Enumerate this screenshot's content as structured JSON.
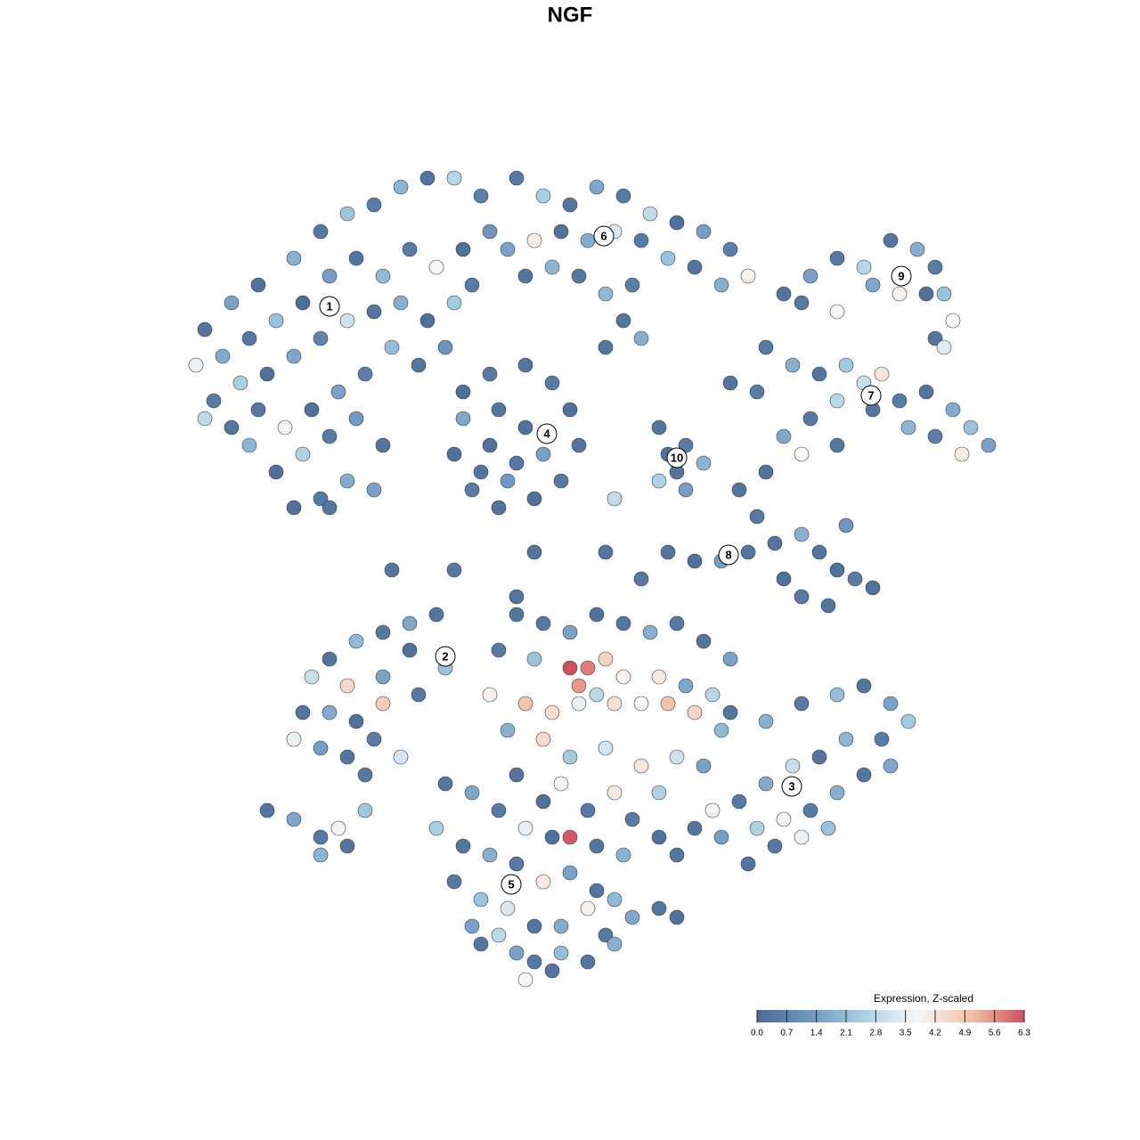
{
  "chart_data": {
    "type": "scatter",
    "title": "NGF",
    "xlim": [
      -50,
      50
    ],
    "ylim": [
      -50,
      50
    ],
    "x": [
      -41,
      -38,
      -35,
      -31,
      -28,
      -25,
      -22,
      -19,
      -16,
      -13,
      -10,
      -9,
      -12,
      -15,
      -18,
      -21,
      -24,
      -27,
      -30,
      -33,
      -36,
      -39,
      -42,
      -40,
      -37,
      -34,
      -31,
      -28,
      -25,
      -22,
      -19,
      -16,
      -13,
      -11,
      -14,
      -17,
      -20,
      -23,
      -26,
      -29,
      -32,
      -35,
      -38,
      -41,
      -36,
      -33,
      -30,
      -27,
      -24,
      -21,
      -25,
      -28,
      -31,
      -27,
      -22,
      -6,
      -3,
      0,
      3,
      6,
      9,
      12,
      15,
      18,
      20,
      17,
      14,
      11,
      8,
      5,
      2,
      -1,
      -4,
      -7,
      -5,
      -2,
      1,
      4,
      7,
      4,
      6,
      8,
      -12,
      -9,
      -5,
      -2,
      0,
      1,
      -1,
      -4,
      -8,
      -11,
      -13,
      -12,
      -8,
      -5,
      -3,
      -6,
      -9,
      -7,
      -10,
      10,
      13,
      15,
      12,
      10,
      13,
      11,
      24,
      27,
      30,
      33,
      36,
      39,
      41,
      42,
      43,
      40,
      37,
      34,
      30,
      26,
      41,
      42,
      22,
      25,
      28,
      31,
      33,
      35,
      37,
      40,
      43,
      45,
      47,
      44,
      41,
      38,
      34,
      30,
      27,
      24,
      26,
      30,
      21,
      18,
      19,
      22,
      21,
      23,
      26,
      28,
      30,
      32,
      34,
      29,
      26,
      24,
      20,
      17,
      14,
      11,
      8,
      31,
      -15,
      -18,
      -21,
      -24,
      -27,
      -29,
      -25,
      -21,
      -18,
      -14,
      -17,
      -21,
      -24,
      -27,
      -30,
      -31,
      -28,
      -25,
      -22,
      -19,
      -23,
      -34,
      -31,
      -28,
      -26,
      -28,
      -25,
      -23,
      -6,
      -3,
      0,
      3,
      6,
      9,
      12,
      15,
      18,
      -8,
      -4,
      0,
      2,
      4,
      6,
      10,
      13,
      16,
      -9,
      -5,
      -2,
      1,
      1,
      3,
      5,
      8,
      11,
      14,
      17,
      -7,
      -3,
      0,
      4,
      8,
      12,
      15,
      -6,
      -1,
      5,
      10,
      -3,
      2,
      7,
      18,
      22,
      26,
      30,
      33,
      36,
      38,
      35,
      31,
      28,
      25,
      22,
      19,
      16,
      14,
      17,
      21,
      24,
      27,
      30,
      33,
      36,
      26,
      23,
      29,
      20,
      12,
      10,
      -14,
      -11,
      -8,
      -5,
      -2,
      0,
      3,
      6,
      -15,
      -12,
      -9,
      -6,
      -3,
      0,
      3,
      5,
      -13,
      -10,
      -7,
      -4,
      -1,
      2,
      4,
      7,
      10,
      12,
      -10,
      -8,
      -6,
      -4,
      -1,
      2,
      5,
      -2,
      -5,
      -11,
      -20,
      -13,
      -4,
      4,
      5,
      -6
    ],
    "y": [
      27,
      30,
      32,
      35,
      38,
      40,
      41,
      43,
      44,
      44,
      42,
      38,
      36,
      34,
      36,
      33,
      35,
      33,
      30,
      28,
      26,
      24,
      23,
      19,
      21,
      22,
      24,
      26,
      28,
      29,
      30,
      28,
      30,
      32,
      25,
      23,
      25,
      22,
      20,
      18,
      16,
      18,
      16,
      17,
      14,
      11,
      13,
      15,
      17,
      14,
      10,
      8,
      7,
      7,
      9,
      44,
      42,
      41,
      43,
      42,
      40,
      39,
      38,
      36,
      33,
      32,
      34,
      35,
      37,
      38,
      37,
      38,
      37,
      36,
      33,
      34,
      33,
      31,
      32,
      25,
      28,
      26,
      20,
      22,
      23,
      21,
      18,
      14,
      10,
      8,
      7,
      9,
      13,
      17,
      18,
      16,
      13,
      12,
      14,
      10,
      11,
      16,
      14,
      12,
      11,
      10,
      9,
      13,
      31,
      33,
      35,
      34,
      37,
      36,
      34,
      31,
      28,
      31,
      31,
      32,
      29,
      30,
      26,
      25,
      25,
      23,
      22,
      23,
      21,
      22,
      19,
      20,
      18,
      16,
      14,
      13,
      15,
      16,
      18,
      19,
      17,
      15,
      13,
      14,
      20,
      21,
      9,
      11,
      6,
      3,
      4,
      2,
      0,
      -1,
      -2,
      -4,
      -3,
      -1,
      2,
      1,
      1,
      2,
      -1,
      5,
      -5,
      -6,
      -7,
      -8,
      -10,
      -12,
      -13,
      -12,
      -9,
      -11,
      -14,
      -15,
      -17,
      -16,
      -16,
      -19,
      -20,
      -21,
      -19,
      -21,
      -23,
      -27,
      -28,
      -30,
      -29,
      -32,
      -31,
      -27,
      -5,
      -6,
      -7,
      -5,
      -6,
      -7,
      -6,
      -8,
      -10,
      -9,
      -10,
      -11,
      -11,
      -10,
      -12,
      -12,
      -13,
      -14,
      -14,
      -15,
      -16,
      -13,
      -15,
      -14,
      -15,
      -15,
      -15,
      -16,
      -18,
      -18,
      -19,
      -21,
      -20,
      -22,
      -21,
      -22,
      -23,
      -24,
      -25,
      -25,
      -26,
      -27,
      -28,
      -16,
      -17,
      -15,
      -14,
      -13,
      -15,
      -17,
      -19,
      -19,
      -21,
      -22,
      -24,
      -26,
      -27,
      -29,
      -30,
      -29,
      -28,
      -27,
      -25,
      -23,
      -22,
      -30,
      -31,
      -29,
      -33,
      -32,
      -30,
      -24,
      -25,
      -27,
      -29,
      -30,
      -30,
      -31,
      -32,
      -29,
      -31,
      -32,
      -33,
      -35,
      -34,
      -36,
      -37,
      -35,
      -37,
      -38,
      -40,
      -40,
      -38,
      -41,
      -39,
      -38,
      -39,
      -42,
      -41,
      -43,
      -44,
      -43,
      -44,
      -42,
      -45,
      -46,
      -40,
      0,
      0,
      2,
      2,
      8,
      -3
    ],
    "values": [
      0.3,
      1.5,
      0.2,
      1.8,
      0.4,
      2.3,
      0.5,
      1.9,
      0.3,
      2.7,
      0.6,
      1.2,
      0.2,
      3.8,
      0.5,
      2.0,
      0.3,
      1.4,
      0.1,
      2.2,
      0.4,
      1.7,
      3.6,
      0.5,
      2.5,
      0.2,
      1.6,
      0.7,
      3.1,
      0.3,
      1.8,
      0.2,
      2.4,
      0.5,
      1.1,
      0.3,
      2.1,
      0.6,
      1.5,
      0.2,
      3.7,
      0.4,
      0.3,
      2.8,
      1.9,
      0.2,
      2.6,
      0.5,
      1.3,
      0.3,
      1.7,
      0.4,
      0.2,
      0.3,
      1.5,
      0.4,
      2.5,
      0.3,
      1.6,
      0.5,
      2.9,
      0.2,
      1.4,
      0.6,
      3.9,
      1.8,
      0.3,
      2.2,
      0.5,
      3.3,
      1.7,
      0.2,
      4.0,
      1.5,
      0.3,
      1.9,
      0.4,
      2.0,
      0.6,
      0.3,
      0.3,
      1.8,
      0.2,
      0.4,
      0.3,
      0.5,
      0.2,
      0.3,
      0.4,
      0.2,
      0.3,
      0.5,
      0.2,
      1.6,
      0.3,
      0.2,
      1.5,
      0.4,
      0.2,
      1.3,
      0.3,
      0.3,
      0.5,
      1.9,
      0.3,
      2.6,
      1.4,
      0.2,
      0.3,
      1.5,
      0.4,
      2.7,
      0.3,
      1.8,
      0.5,
      2.2,
      3.8,
      0.2,
      3.9,
      1.6,
      3.7,
      0.4,
      0.3,
      3.4,
      0.4,
      1.8,
      0.3,
      2.4,
      3.0,
      4.2,
      0.5,
      0.3,
      1.7,
      2.2,
      1.5,
      4.0,
      0.6,
      1.9,
      0.3,
      2.8,
      0.4,
      1.6,
      3.8,
      0.3,
      0.5,
      0.3,
      0.3,
      0.2,
      0.4,
      0.3,
      1.8,
      0.3,
      0.2,
      0.5,
      0.2,
      0.3,
      0.4,
      0.2,
      0.3,
      1.4,
      0.2,
      0.3,
      0.4,
      1.2,
      0.3,
      1.6,
      0.4,
      2.0,
      0.3,
      3.0,
      4.5,
      1.5,
      0.2,
      2.2,
      0.4,
      4.8,
      0.2,
      1.7,
      0.3,
      3.6,
      1.4,
      0.3,
      0.5,
      3.2,
      0.4,
      0.3,
      1.6,
      0.4,
      3.7,
      1.9,
      0.3,
      2.3,
      0.3,
      0.4,
      1.5,
      0.2,
      0.3,
      1.8,
      0.4,
      0.3,
      1.5,
      0.5,
      2.2,
      6.3,
      5.8,
      4.6,
      3.9,
      4.1,
      1.6,
      2.7,
      3.9,
      5.0,
      4.4,
      5.5,
      3.6,
      2.8,
      4.3,
      3.8,
      5.0,
      4.6,
      2.0,
      1.8,
      4.4,
      2.4,
      3.2,
      4.2,
      3.1,
      1.5,
      0.3,
      3.7,
      4.1,
      2.6,
      0.2,
      0.4,
      0.5,
      0.3,
      1.8,
      0.4,
      2.1,
      0.3,
      1.5,
      2.4,
      0.5,
      1.9,
      0.3,
      3.0,
      1.7,
      0.4,
      3.9,
      0.3,
      1.4,
      2.6,
      3.8,
      0.5,
      1.8,
      0.3,
      1.6,
      3.6,
      0.4,
      2.2,
      0.3,
      0.3,
      0.2,
      0.3,
      1.6,
      0.4,
      3.5,
      0.2,
      6.2,
      0.3,
      1.9,
      2.5,
      0.3,
      1.8,
      0.4,
      4.1,
      1.5,
      0.3,
      2.0,
      0.4,
      2.2,
      3.3,
      0.3,
      1.7,
      3.9,
      0.4,
      1.6,
      0.3,
      0.2,
      0.3,
      2.8,
      1.5,
      0.4,
      2.1,
      0.3,
      1.8,
      0.3,
      3.8,
      1.5,
      0.3,
      0.4,
      0.3,
      0.3,
      2.9,
      0.3
    ],
    "clusters": {
      "labels": [
        "1",
        "2",
        "3",
        "4",
        "5",
        "6",
        "7",
        "8",
        "9",
        "10"
      ],
      "x": [
        -27,
        -14,
        24.9,
        -2.6,
        -6.6,
        3.8,
        33.8,
        17.8,
        37.2,
        12
      ],
      "y": [
        29.6,
        -9.7,
        -24.3,
        15.3,
        -35.3,
        37.5,
        19.6,
        1.7,
        33,
        12.6
      ]
    },
    "colorbar": {
      "title": "Expression, Z-scaled",
      "clim": [
        0,
        6.3
      ],
      "ticks": [
        {
          "value": 0,
          "label": "0.0"
        },
        0.7,
        1.4,
        2.1,
        2.8,
        3.5,
        4.2,
        4.9,
        5.6,
        6.3
      ],
      "colormap": [
        "#4a6a94",
        "#6f97c2",
        "#a9d0e3",
        "#f7f7f7",
        "#f3c1a6",
        "#d0505e"
      ]
    }
  }
}
